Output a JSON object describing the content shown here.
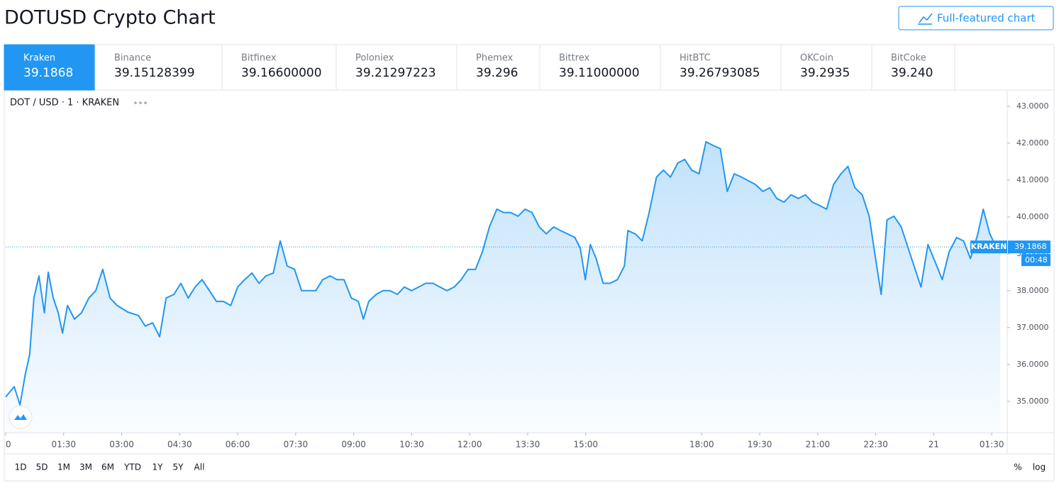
{
  "header": {
    "title": "DOTUSD Crypto Chart",
    "button": "Full-featured chart"
  },
  "exchanges": [
    {
      "name": "Kraken",
      "price": "39.1868"
    },
    {
      "name": "Binance",
      "price": "39.15128399"
    },
    {
      "name": "Bitfinex",
      "price": "39.16600000"
    },
    {
      "name": "Poloniex",
      "price": "39.21297223"
    },
    {
      "name": "Phemex",
      "price": "39.296"
    },
    {
      "name": "Bittrex",
      "price": "39.11000000"
    },
    {
      "name": "HitBTC",
      "price": "39.26793085"
    },
    {
      "name": "OKCoin",
      "price": "39.2935"
    },
    {
      "name": "BitCoke",
      "price": "39.240"
    }
  ],
  "chart_data": {
    "type": "line",
    "legend": "DOT / USD · 1 · KRAKEN",
    "color": "#2196f3",
    "x": [
      0,
      0.22,
      0.37,
      0.5,
      0.62,
      0.73,
      0.86,
      1.0,
      1.1,
      1.23,
      1.36,
      1.47,
      1.6,
      1.78,
      1.96,
      2.15,
      2.33,
      2.51,
      2.7,
      2.88,
      3.16,
      3.43,
      3.61,
      3.8,
      3.98,
      4.15,
      4.35,
      4.53,
      4.72,
      4.9,
      5.08,
      5.27,
      5.45,
      5.63,
      5.82,
      6.0,
      6.18,
      6.37,
      6.55,
      6.73,
      6.92,
      7.1,
      7.28,
      7.47,
      7.65,
      7.83,
      8.02,
      8.2,
      8.39,
      8.57,
      8.75,
      8.94,
      9.12,
      9.25,
      9.39,
      9.58,
      9.76,
      9.94,
      10.13,
      10.31,
      10.5,
      10.68,
      10.86,
      11.05,
      11.23,
      11.41,
      11.6,
      11.78,
      11.96,
      12.15,
      12.33,
      12.51,
      12.7,
      12.88,
      13.06,
      13.25,
      13.43,
      13.61,
      13.8,
      13.98,
      14.17,
      14.35,
      14.53,
      14.72,
      14.86,
      14.99,
      15.12,
      15.27,
      15.45,
      15.63,
      15.82,
      16.0,
      16.09,
      16.28,
      16.46,
      16.64,
      16.83,
      17.01,
      17.19,
      17.38,
      17.56,
      17.74,
      17.93,
      18.11,
      18.29,
      18.48,
      18.66,
      18.84,
      19.03,
      19.21,
      19.39,
      19.58,
      19.76,
      19.94,
      20.13,
      20.31,
      20.5,
      20.68,
      20.86,
      21.05,
      21.23,
      21.41,
      21.6,
      21.78,
      21.96,
      22.15,
      22.33,
      22.51,
      22.64,
      22.79,
      22.97,
      23.16,
      23.34,
      23.52,
      23.67,
      23.85,
      24.04,
      24.22,
      24.4,
      24.59,
      24.77,
      24.95,
      25.14,
      25.28,
      25.45,
      25.63,
      25.72
    ],
    "values": [
      35.12,
      35.4,
      34.9,
      35.7,
      36.27,
      37.8,
      38.4,
      37.4,
      38.5,
      37.8,
      37.4,
      36.85,
      37.6,
      37.23,
      37.4,
      37.8,
      38.0,
      38.58,
      37.8,
      37.6,
      37.42,
      37.33,
      37.04,
      37.13,
      36.75,
      37.8,
      37.9,
      38.2,
      37.8,
      38.1,
      38.3,
      38.0,
      37.71,
      37.71,
      37.6,
      38.1,
      38.3,
      38.48,
      38.2,
      38.4,
      38.48,
      39.35,
      38.67,
      38.58,
      38.0,
      38.0,
      38.0,
      38.3,
      38.4,
      38.3,
      38.3,
      37.8,
      37.71,
      37.23,
      37.71,
      37.9,
      38.0,
      38.0,
      37.9,
      38.1,
      38.0,
      38.1,
      38.2,
      38.2,
      38.1,
      38.0,
      38.1,
      38.3,
      38.58,
      38.58,
      39.06,
      39.73,
      40.21,
      40.12,
      40.12,
      40.02,
      40.21,
      40.12,
      39.73,
      39.54,
      39.73,
      39.63,
      39.54,
      39.44,
      39.15,
      38.3,
      39.25,
      38.87,
      38.2,
      38.2,
      38.3,
      38.67,
      39.63,
      39.54,
      39.35,
      40.12,
      41.08,
      41.27,
      41.08,
      41.46,
      41.56,
      41.27,
      41.17,
      42.04,
      41.94,
      41.85,
      40.69,
      41.17,
      41.08,
      40.98,
      40.88,
      40.69,
      40.79,
      40.5,
      40.4,
      40.6,
      40.5,
      40.6,
      40.4,
      40.31,
      40.21,
      40.88,
      41.17,
      41.37,
      40.79,
      40.6,
      40.02,
      38.77,
      37.9,
      39.92,
      40.02,
      39.73,
      39.15,
      38.58,
      38.1,
      39.25,
      38.77,
      38.3,
      39.06,
      39.44,
      39.35,
      38.87,
      39.54,
      40.21,
      39.54,
      39.15,
      39.1868
    ],
    "xlim": [
      0,
      25.9
    ],
    "ylim": [
      34.15,
      43.42
    ],
    "xticks": [
      0,
      {
        "value": 1.5,
        "label": "01:30"
      },
      {
        "value": 3,
        "label": "03:00"
      },
      {
        "value": 4.5,
        "label": "04:30"
      },
      {
        "value": 6,
        "label": "06:00"
      },
      {
        "value": 7.5,
        "label": "07:30"
      },
      {
        "value": 9,
        "label": "09:00"
      },
      {
        "value": 10.5,
        "label": "10:30"
      },
      {
        "value": 12,
        "label": "12:00"
      },
      {
        "value": 13.5,
        "label": "13:30"
      },
      {
        "value": 15,
        "label": "15:00"
      },
      {
        "value": 18,
        "label": "18:00"
      },
      {
        "value": 19.5,
        "label": "19:30"
      },
      {
        "value": 21,
        "label": "21:00"
      },
      {
        "value": 22.5,
        "label": "22:30"
      },
      {
        "value": 24,
        "label": "21"
      },
      {
        "value": 25.5,
        "label": "01:30"
      }
    ],
    "yticks": [
      {
        "value": 35,
        "label": "35.0000"
      },
      {
        "value": 36,
        "label": "36.0000"
      },
      {
        "value": 37,
        "label": "37.0000"
      },
      {
        "value": 38,
        "label": "38.0000"
      },
      {
        "value": 39,
        "label": "39.0000"
      },
      {
        "value": 40,
        "label": "40.0000"
      },
      {
        "value": 41,
        "label": "41.0000"
      },
      {
        "value": 42,
        "label": "42.0000"
      },
      {
        "value": 43,
        "label": "43.0000"
      }
    ],
    "grid": false,
    "last_price": {
      "exchange": "KRAKEN",
      "value": 39.1868,
      "countdown": "00:48"
    }
  },
  "range_buttons": [
    "1D",
    "5D",
    "1M",
    "3M",
    "6M",
    "YTD",
    "1Y",
    "5Y",
    "All"
  ],
  "scale_buttons": [
    "%",
    "log"
  ]
}
